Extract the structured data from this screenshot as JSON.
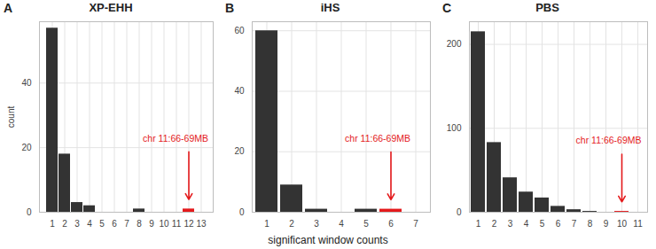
{
  "chart_data": [
    {
      "type": "bar",
      "panel": "A",
      "title": "XP-EHH",
      "y_label": "count",
      "categories": [
        1,
        2,
        3,
        4,
        5,
        6,
        7,
        8,
        9,
        10,
        11,
        12,
        13
      ],
      "values": [
        57,
        18,
        3,
        2,
        0,
        0,
        0,
        1,
        0,
        0,
        0,
        1,
        0
      ],
      "colors": [
        "#333333",
        "#333333",
        "#333333",
        "#333333",
        "#333333",
        "#333333",
        "#333333",
        "#333333",
        "#333333",
        "#333333",
        "#333333",
        "#e41a1c",
        "#333333"
      ],
      "ylim": [
        0,
        59
      ],
      "yticks": [
        0,
        20,
        40
      ],
      "grid": true,
      "annotation": {
        "text": "chr 11:66-69MB",
        "x": 12
      }
    },
    {
      "type": "bar",
      "panel": "B",
      "title": "iHS",
      "x_label": "significant window counts",
      "categories": [
        1,
        2,
        3,
        4,
        5,
        6,
        7
      ],
      "values": [
        60,
        9,
        1,
        0,
        1,
        1,
        0
      ],
      "colors": [
        "#333333",
        "#333333",
        "#333333",
        "#333333",
        "#333333",
        "#e41a1c",
        "#333333"
      ],
      "ylim": [
        0,
        63
      ],
      "yticks": [
        0,
        20,
        40,
        60
      ],
      "grid": true,
      "annotation": {
        "text": "chr 11:66-69MB",
        "x": 6
      }
    },
    {
      "type": "bar",
      "panel": "C",
      "title": "PBS",
      "categories": [
        1,
        2,
        3,
        4,
        5,
        6,
        7,
        8,
        9,
        10,
        11
      ],
      "values": [
        215,
        83,
        41,
        24,
        17,
        7,
        3,
        1,
        0,
        1,
        0
      ],
      "colors": [
        "#333333",
        "#333333",
        "#333333",
        "#333333",
        "#333333",
        "#333333",
        "#333333",
        "#333333",
        "#333333",
        "#e41a1c",
        "#333333"
      ],
      "ylim": [
        0,
        227
      ],
      "yticks": [
        0,
        100,
        200
      ],
      "grid": true,
      "annotation": {
        "text": "chr 11:66-69MB",
        "x": 10
      }
    }
  ]
}
